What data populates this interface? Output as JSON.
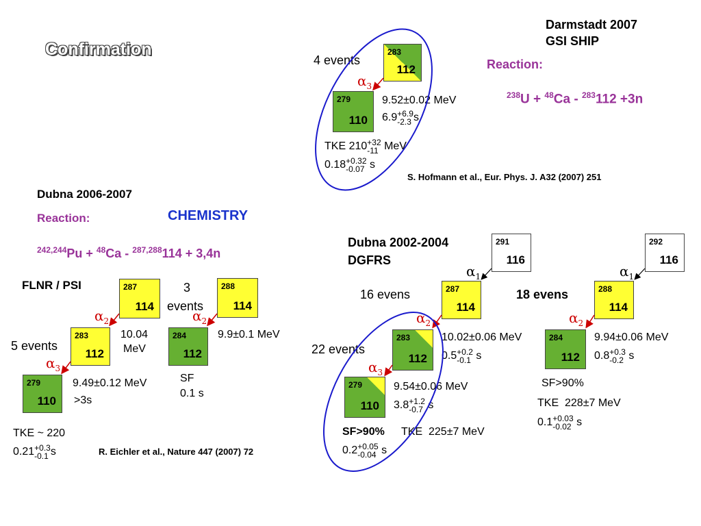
{
  "title": "Confirmation",
  "gsi": {
    "lab_line1": "Darmstadt 2007",
    "lab_line2": "GSI SHIP",
    "reaction_label": "Reaction:",
    "reaction": {
      "m1": "238",
      "e1": "U + ",
      "m2": "48",
      "e2": "Ca - ",
      "m3": "283",
      "e3": "112 +3n"
    },
    "events": "4 events",
    "box_283": {
      "mass": "283",
      "z": "112"
    },
    "box_279": {
      "mass": "279",
      "z": "110"
    },
    "alpha": "α",
    "alpha_sub": "3",
    "energy": "9.52±0.02 MeV",
    "half_life": {
      "base": "6.9",
      "up": "+6.9",
      "down": "-2.3",
      "unit": "s"
    },
    "tke": {
      "base": "TKE 210",
      "up": "+32",
      "down": "-11",
      "unit": "MeV"
    },
    "sf_time": {
      "base": "0.18",
      "up": "+0.32",
      "down": "-0.07",
      "unit": "s"
    },
    "reference": "S. Hofmann et al., Eur. Phys. J. A32 (2007) 251"
  },
  "dubna2006": {
    "heading": "Dubna 2006-2007",
    "reaction_label": "Reaction:",
    "chemistry": "CHEMISTRY",
    "reaction": {
      "m1": "242,244",
      "e1": "Pu + ",
      "m2": "48",
      "e2": "Ca - ",
      "m3": "287,288",
      "e3": "114 + 3,4n"
    },
    "lab": "FLNR / PSI",
    "left_chain": {
      "box_287": {
        "mass": "287",
        "z": "114"
      },
      "box_283": {
        "mass": "283",
        "z": "112"
      },
      "box_279": {
        "mass": "279",
        "z": "110"
      },
      "alpha2": "α",
      "alpha2_sub": "2",
      "alpha3": "α",
      "alpha3_sub": "3",
      "energy2_line1": "10.04",
      "energy2_line2": "MeV",
      "events": "5 events",
      "energy3": "9.49±0.12 MeV",
      "time3": ">3s",
      "tke": "TKE ~ 220",
      "sf_time": {
        "base": "0.21",
        "up": "+0.3",
        "down": "-0.1",
        "unit": "s"
      }
    },
    "right_chain": {
      "events_line1": "3",
      "events_line2": "events",
      "box_288": {
        "mass": "288",
        "z": "114"
      },
      "box_284": {
        "mass": "284",
        "z": "112"
      },
      "alpha2": "α",
      "alpha2_sub": "2",
      "energy": "9.9±0.1 MeV",
      "sf": "SF",
      "sf_time": "0.1 s"
    },
    "reference": "R. Eichler et al., Nature 447 (2007) 72"
  },
  "dubna2002": {
    "heading_line1": "Dubna 2002-2004",
    "heading_line2": "DGFRS",
    "chain_291": {
      "box_291": {
        "mass": "291",
        "z": "116"
      },
      "alpha1": "α",
      "alpha1_sub": "1",
      "events": "16 evens",
      "box_287": {
        "mass": "287",
        "z": "114"
      },
      "alpha2": "α",
      "alpha2_sub": "2",
      "energy2": "10.02±0.06 MeV",
      "time2": {
        "base": "0.5",
        "up": "+0.2",
        "down": "-0.1",
        "unit": "s"
      },
      "events22": "22 events",
      "box_283": {
        "mass": "283",
        "z": "112"
      },
      "alpha3": "α",
      "alpha3_sub": "3",
      "energy3": "9.54±0.06 MeV",
      "time3": {
        "base": "3.8",
        "up": "+1.2",
        "down": "-0.7",
        "unit": "s"
      },
      "box_279": {
        "mass": "279",
        "z": "110"
      },
      "sf": "SF>90%",
      "tke": "TKE  225±7 MeV",
      "sf_time": {
        "base": "0.2",
        "up": "+0.05",
        "down": "-0.04",
        "unit": "s"
      }
    },
    "chain_292": {
      "box_292": {
        "mass": "292",
        "z": "116"
      },
      "alpha1": "α",
      "alpha1_sub": "1",
      "events": "18 evens",
      "box_288": {
        "mass": "288",
        "z": "114"
      },
      "alpha2": "α",
      "alpha2_sub": "2",
      "energy2": "9.94±0.06 MeV",
      "time2": {
        "base": "0.8",
        "up": "+0.3",
        "down": "-0.2",
        "unit": "s"
      },
      "box_284": {
        "mass": "284",
        "z": "112"
      },
      "sf": "SF>90%",
      "tke": "TKE  228±7 MeV",
      "sf_time": {
        "base": "0.1",
        "up": "+0.03",
        "down": "-0.02",
        "unit": "s"
      }
    }
  },
  "colors": {
    "accent_purple": "#993399",
    "alpha_red": "#cc0000",
    "ellipse_blue": "#1a1acc",
    "chemistry_blue": "#1a33cc",
    "cell_yellow": "#ffff33",
    "cell_green": "#66b032"
  }
}
